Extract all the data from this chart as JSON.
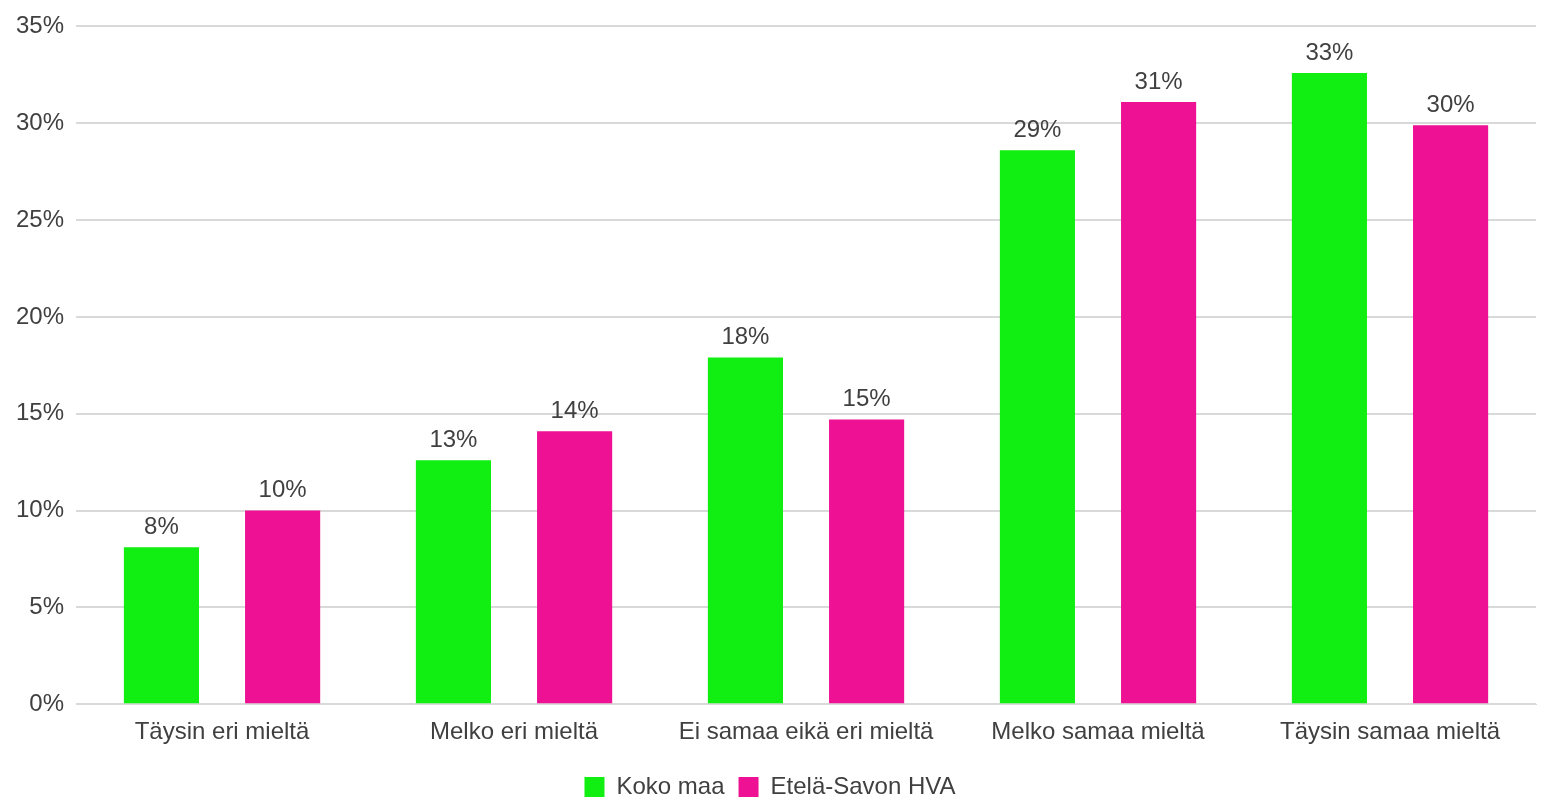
{
  "chart_data": {
    "type": "bar",
    "categories": [
      "Täysin eri mieltä",
      "Melko eri mieltä",
      "Ei samaa eikä eri mieltä",
      "Melko samaa mieltä",
      "Täysin samaa mieltä"
    ],
    "series": [
      {
        "name": "Koko maa",
        "color": "#11ee11",
        "values": [
          8.1,
          12.6,
          17.9,
          28.6,
          32.6
        ],
        "value_labels": [
          "8%",
          "13%",
          "18%",
          "29%",
          "33%"
        ]
      },
      {
        "name": "Etelä-Savon HVA",
        "color": "#ee1193",
        "values": [
          10.0,
          14.1,
          14.7,
          31.1,
          29.9
        ],
        "value_labels": [
          "10%",
          "14%",
          "15%",
          "31%",
          "30%"
        ]
      }
    ],
    "ylim": [
      0,
      35
    ],
    "yticks": [
      {
        "value": 0,
        "label": "0%"
      },
      {
        "value": 5,
        "label": "5%"
      },
      {
        "value": 10,
        "label": "10%"
      },
      {
        "value": 15,
        "label": "15%"
      },
      {
        "value": 20,
        "label": "20%"
      },
      {
        "value": 25,
        "label": "25%"
      },
      {
        "value": 30,
        "label": "30%"
      },
      {
        "value": 35,
        "label": "35%"
      }
    ],
    "grid": "y",
    "legend": "bottom"
  }
}
